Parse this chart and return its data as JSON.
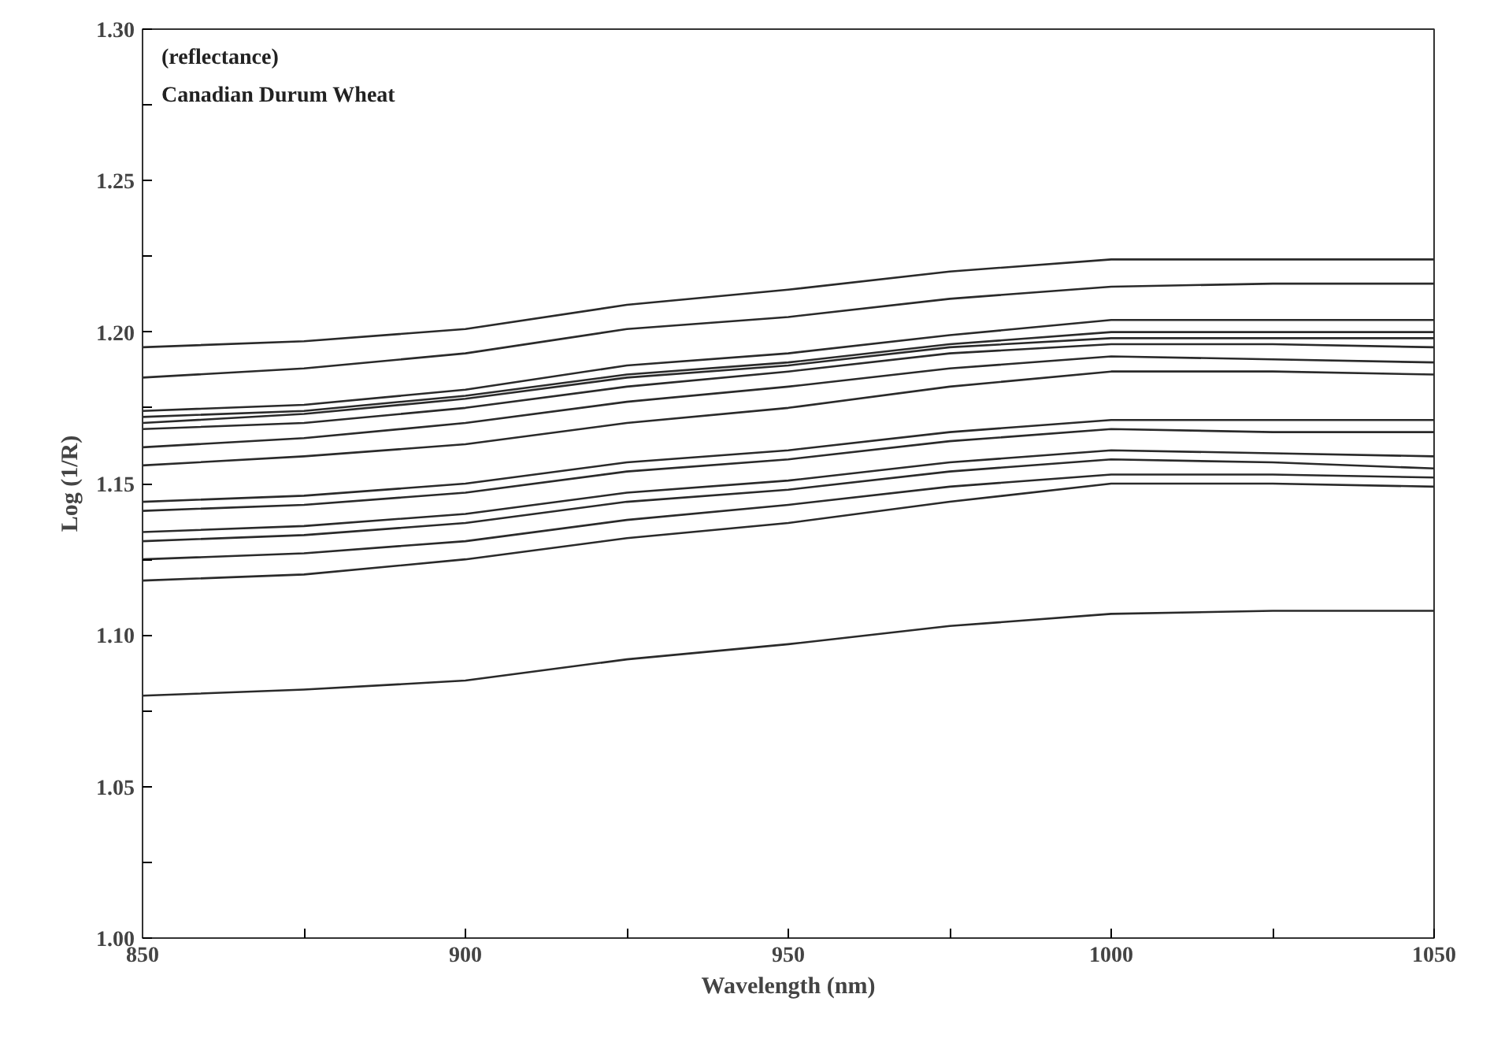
{
  "chart_data": {
    "type": "line",
    "xlabel": "Wavelength (nm)",
    "ylabel": "Log (1/R)",
    "annotations": [
      "(reflectance)",
      "Canadian Durum Wheat"
    ],
    "x": [
      850,
      875,
      900,
      925,
      950,
      975,
      1000,
      1025,
      1050
    ],
    "xlim": [
      850,
      1050
    ],
    "ylim": [
      1.0,
      1.3
    ],
    "xticks": [
      850,
      {
        "value": 875,
        "label": null
      },
      900,
      {
        "value": 925,
        "label": null
      },
      950,
      {
        "value": 975,
        "label": null
      },
      1000,
      {
        "value": 1025,
        "label": null
      },
      1050
    ],
    "yticks": [
      {
        "value": 1.0,
        "label": "1.00"
      },
      {
        "value": 1.025,
        "label": null
      },
      1.05,
      {
        "value": 1.075,
        "label": null
      },
      {
        "value": 1.1,
        "label": "1.10"
      },
      {
        "value": 1.125,
        "label": null
      },
      1.15,
      {
        "value": 1.175,
        "label": null
      },
      {
        "value": 1.2,
        "label": "1.20"
      },
      {
        "value": 1.225,
        "label": null
      },
      1.25,
      {
        "value": 1.275,
        "label": null
      },
      {
        "value": 1.3,
        "label": "1.30"
      }
    ],
    "grid": false,
    "marker": "none",
    "line_style": "solid",
    "series": [
      {
        "color": "#2a2a2a",
        "values": [
          1.195,
          1.197,
          1.201,
          1.209,
          1.214,
          1.22,
          1.224,
          1.224,
          1.224
        ]
      },
      {
        "color": "#2a2a2a",
        "values": [
          1.185,
          1.188,
          1.193,
          1.201,
          1.205,
          1.211,
          1.215,
          1.216,
          1.216
        ]
      },
      {
        "color": "#2a2a2a",
        "values": [
          1.174,
          1.176,
          1.181,
          1.189,
          1.193,
          1.199,
          1.204,
          1.204,
          1.204
        ]
      },
      {
        "color": "#2a2a2a",
        "values": [
          1.172,
          1.174,
          1.179,
          1.186,
          1.19,
          1.196,
          1.2,
          1.2,
          1.2
        ]
      },
      {
        "color": "#2a2a2a",
        "values": [
          1.17,
          1.173,
          1.178,
          1.185,
          1.189,
          1.195,
          1.198,
          1.198,
          1.198
        ]
      },
      {
        "color": "#2a2a2a",
        "values": [
          1.168,
          1.17,
          1.175,
          1.182,
          1.187,
          1.193,
          1.196,
          1.196,
          1.195
        ]
      },
      {
        "color": "#2a2a2a",
        "values": [
          1.162,
          1.165,
          1.17,
          1.177,
          1.182,
          1.188,
          1.192,
          1.191,
          1.19
        ]
      },
      {
        "color": "#2a2a2a",
        "values": [
          1.156,
          1.159,
          1.163,
          1.17,
          1.175,
          1.182,
          1.187,
          1.187,
          1.186
        ]
      },
      {
        "color": "#2a2a2a",
        "values": [
          1.144,
          1.146,
          1.15,
          1.157,
          1.161,
          1.167,
          1.171,
          1.171,
          1.171
        ]
      },
      {
        "color": "#2a2a2a",
        "values": [
          1.141,
          1.143,
          1.147,
          1.154,
          1.158,
          1.164,
          1.168,
          1.167,
          1.167
        ]
      },
      {
        "color": "#2a2a2a",
        "values": [
          1.134,
          1.136,
          1.14,
          1.147,
          1.151,
          1.157,
          1.161,
          1.16,
          1.159
        ]
      },
      {
        "color": "#2a2a2a",
        "values": [
          1.131,
          1.133,
          1.137,
          1.144,
          1.148,
          1.154,
          1.158,
          1.157,
          1.155
        ]
      },
      {
        "color": "#2a2a2a",
        "values": [
          1.125,
          1.127,
          1.131,
          1.138,
          1.143,
          1.149,
          1.153,
          1.153,
          1.152
        ]
      },
      {
        "color": "#2a2a2a",
        "values": [
          1.118,
          1.12,
          1.125,
          1.132,
          1.137,
          1.144,
          1.15,
          1.15,
          1.149
        ]
      },
      {
        "color": "#2a2a2a",
        "values": [
          1.08,
          1.082,
          1.085,
          1.092,
          1.097,
          1.103,
          1.107,
          1.108,
          1.108
        ]
      }
    ]
  }
}
